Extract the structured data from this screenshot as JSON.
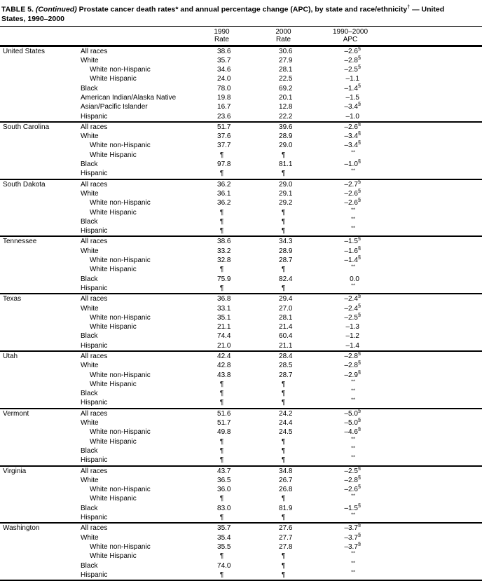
{
  "title": {
    "label": "TABLE 5.",
    "continued": " (Continued)",
    "text_after": " Prostate cancer death rates",
    "star": "*",
    "text_mid": " and annual percentage change (APC), by state and race/ethnicity",
    "dagger": "†",
    "text_end": " — United",
    "line2": "States, 1990–2000"
  },
  "header": {
    "col1990": {
      "line1": "1990",
      "line2": "Rate"
    },
    "col2000": {
      "line1": "2000",
      "line2": "Rate"
    },
    "colapc": {
      "line1": "1990–2000",
      "line2": "APC"
    }
  },
  "sections": [
    {
      "state": "United States",
      "rows": [
        {
          "label": "All races",
          "indent": 0,
          "r90": "38.6",
          "r00": "30.6",
          "apc": "–2.6",
          "sup": "§"
        },
        {
          "label": "White",
          "indent": 0,
          "r90": "35.7",
          "r00": "27.9",
          "apc": "–2.8",
          "sup": "§"
        },
        {
          "label": "White non-Hispanic",
          "indent": 1,
          "r90": "34.6",
          "r00": "28.1",
          "apc": "–2.5",
          "sup": "§"
        },
        {
          "label": "White Hispanic",
          "indent": 1,
          "r90": "24.0",
          "r00": "22.5",
          "apc": "–1.1",
          "sup": ""
        },
        {
          "label": "Black",
          "indent": 0,
          "r90": "78.0",
          "r00": "69.2",
          "apc": "–1.4",
          "sup": "§"
        },
        {
          "label": "American Indian/Alaska Native",
          "indent": 0,
          "r90": "19.8",
          "r00": "20.1",
          "apc": "–1.5",
          "sup": ""
        },
        {
          "label": "Asian/Pacific Islander",
          "indent": 0,
          "r90": "16.7",
          "r00": "12.8",
          "apc": "–3.4",
          "sup": "§"
        },
        {
          "label": "Hispanic",
          "indent": 0,
          "r90": "23.6",
          "r00": "22.2",
          "apc": "–1.0",
          "sup": ""
        }
      ]
    },
    {
      "state": "South Carolina",
      "rows": [
        {
          "label": "All races",
          "indent": 0,
          "r90": "51.7",
          "r00": "39.6",
          "apc": "–2.6",
          "sup": "§"
        },
        {
          "label": "White",
          "indent": 0,
          "r90": "37.6",
          "r00": "28.9",
          "apc": "–3.4",
          "sup": "§"
        },
        {
          "label": "White non-Hispanic",
          "indent": 1,
          "r90": "37.7",
          "r00": "29.0",
          "apc": "–3.4",
          "sup": "§"
        },
        {
          "label": "White Hispanic",
          "indent": 1,
          "r90": "¶",
          "r00": "¶",
          "apc": "",
          "sup": "**"
        },
        {
          "label": "Black",
          "indent": 0,
          "r90": "97.8",
          "r00": "81.1",
          "apc": "–1.0",
          "sup": "§"
        },
        {
          "label": "Hispanic",
          "indent": 0,
          "r90": "¶",
          "r00": "¶",
          "apc": "",
          "sup": "**"
        }
      ]
    },
    {
      "state": "South Dakota",
      "rows": [
        {
          "label": "All races",
          "indent": 0,
          "r90": "36.2",
          "r00": "29.0",
          "apc": "–2.7",
          "sup": "§"
        },
        {
          "label": "White",
          "indent": 0,
          "r90": "36.1",
          "r00": "29.1",
          "apc": "–2.6",
          "sup": "§"
        },
        {
          "label": "White non-Hispanic",
          "indent": 1,
          "r90": "36.2",
          "r00": "29.2",
          "apc": "–2.6",
          "sup": "§"
        },
        {
          "label": "White Hispanic",
          "indent": 1,
          "r90": "¶",
          "r00": "¶",
          "apc": "",
          "sup": "**"
        },
        {
          "label": "Black",
          "indent": 0,
          "r90": "¶",
          "r00": "¶",
          "apc": "",
          "sup": "**"
        },
        {
          "label": "Hispanic",
          "indent": 0,
          "r90": "¶",
          "r00": "¶",
          "apc": "",
          "sup": "**"
        }
      ]
    },
    {
      "state": "Tennessee",
      "rows": [
        {
          "label": "All races",
          "indent": 0,
          "r90": "38.6",
          "r00": "34.3",
          "apc": "–1.5",
          "sup": "§"
        },
        {
          "label": "White",
          "indent": 0,
          "r90": "33.2",
          "r00": "28.9",
          "apc": "–1.6",
          "sup": "§"
        },
        {
          "label": "White non-Hispanic",
          "indent": 1,
          "r90": "32.8",
          "r00": "28.7",
          "apc": "–1.4",
          "sup": "§"
        },
        {
          "label": "White Hispanic",
          "indent": 1,
          "r90": "¶",
          "r00": "¶",
          "apc": "",
          "sup": "**"
        },
        {
          "label": "Black",
          "indent": 0,
          "r90": "75.9",
          "r00": "82.4",
          "apc": "0.0",
          "sup": ""
        },
        {
          "label": "Hispanic",
          "indent": 0,
          "r90": "¶",
          "r00": "¶",
          "apc": "",
          "sup": "**"
        }
      ]
    },
    {
      "state": "Texas",
      "rows": [
        {
          "label": "All races",
          "indent": 0,
          "r90": "36.8",
          "r00": "29.4",
          "apc": "–2.4",
          "sup": "§"
        },
        {
          "label": "White",
          "indent": 0,
          "r90": "33.1",
          "r00": "27.0",
          "apc": "–2.4",
          "sup": "§"
        },
        {
          "label": "White non-Hispanic",
          "indent": 1,
          "r90": "35.1",
          "r00": "28.1",
          "apc": "–2.5",
          "sup": "§"
        },
        {
          "label": "White Hispanic",
          "indent": 1,
          "r90": "21.1",
          "r00": "21.4",
          "apc": "–1.3",
          "sup": ""
        },
        {
          "label": "Black",
          "indent": 0,
          "r90": "74.4",
          "r00": "60.4",
          "apc": "–1.2",
          "sup": ""
        },
        {
          "label": "Hispanic",
          "indent": 0,
          "r90": "21.0",
          "r00": "21.1",
          "apc": "–1.4",
          "sup": ""
        }
      ]
    },
    {
      "state": "Utah",
      "rows": [
        {
          "label": "All races",
          "indent": 0,
          "r90": "42.4",
          "r00": "28.4",
          "apc": "–2.8",
          "sup": "§"
        },
        {
          "label": "White",
          "indent": 0,
          "r90": "42.8",
          "r00": "28.5",
          "apc": "–2.8",
          "sup": "§"
        },
        {
          "label": "White non-Hispanic",
          "indent": 1,
          "r90": "43.8",
          "r00": "28.7",
          "apc": "–2.9",
          "sup": "§"
        },
        {
          "label": "White Hispanic",
          "indent": 1,
          "r90": "¶",
          "r00": "¶",
          "apc": "",
          "sup": "**"
        },
        {
          "label": "Black",
          "indent": 0,
          "r90": "¶",
          "r00": "¶",
          "apc": "",
          "sup": "**"
        },
        {
          "label": "Hispanic",
          "indent": 0,
          "r90": "¶",
          "r00": "¶",
          "apc": "",
          "sup": "**"
        }
      ]
    },
    {
      "state": "Vermont",
      "rows": [
        {
          "label": "All races",
          "indent": 0,
          "r90": "51.6",
          "r00": "24.2",
          "apc": "–5.0",
          "sup": "§"
        },
        {
          "label": "White",
          "indent": 0,
          "r90": "51.7",
          "r00": "24.4",
          "apc": "–5.0",
          "sup": "§"
        },
        {
          "label": "White non-Hispanic",
          "indent": 1,
          "r90": "49.8",
          "r00": "24.5",
          "apc": "–4.6",
          "sup": "§"
        },
        {
          "label": "White Hispanic",
          "indent": 1,
          "r90": "¶",
          "r00": "¶",
          "apc": "",
          "sup": "**"
        },
        {
          "label": "Black",
          "indent": 0,
          "r90": "¶",
          "r00": "¶",
          "apc": "",
          "sup": "**"
        },
        {
          "label": "Hispanic",
          "indent": 0,
          "r90": "¶",
          "r00": "¶",
          "apc": "",
          "sup": "**"
        }
      ]
    },
    {
      "state": "Virginia",
      "rows": [
        {
          "label": "All races",
          "indent": 0,
          "r90": "43.7",
          "r00": "34.8",
          "apc": "–2.5",
          "sup": "§"
        },
        {
          "label": "White",
          "indent": 0,
          "r90": "36.5",
          "r00": "26.7",
          "apc": "–2.8",
          "sup": "§"
        },
        {
          "label": "White non-Hispanic",
          "indent": 1,
          "r90": "36.0",
          "r00": "26.8",
          "apc": "–2.6",
          "sup": "§"
        },
        {
          "label": "White Hispanic",
          "indent": 1,
          "r90": "¶",
          "r00": "¶",
          "apc": "",
          "sup": "**"
        },
        {
          "label": "Black",
          "indent": 0,
          "r90": "83.0",
          "r00": "81.9",
          "apc": "–1.5",
          "sup": "§"
        },
        {
          "label": "Hispanic",
          "indent": 0,
          "r90": "¶",
          "r00": "¶",
          "apc": "",
          "sup": "**"
        }
      ]
    },
    {
      "state": "Washington",
      "rows": [
        {
          "label": "All races",
          "indent": 0,
          "r90": "35.7",
          "r00": "27.6",
          "apc": "–3.7",
          "sup": "§"
        },
        {
          "label": "White",
          "indent": 0,
          "r90": "35.4",
          "r00": "27.7",
          "apc": "–3.7",
          "sup": "§"
        },
        {
          "label": "White non-Hispanic",
          "indent": 1,
          "r90": "35.5",
          "r00": "27.8",
          "apc": "–3.7",
          "sup": "§"
        },
        {
          "label": "White Hispanic",
          "indent": 1,
          "r90": "¶",
          "r00": "¶",
          "apc": "",
          "sup": "**"
        },
        {
          "label": "Black",
          "indent": 0,
          "r90": "74.0",
          "r00": "¶",
          "apc": "",
          "sup": "**"
        },
        {
          "label": "Hispanic",
          "indent": 0,
          "r90": "¶",
          "r00": "¶",
          "apc": "",
          "sup": "**"
        }
      ]
    }
  ]
}
